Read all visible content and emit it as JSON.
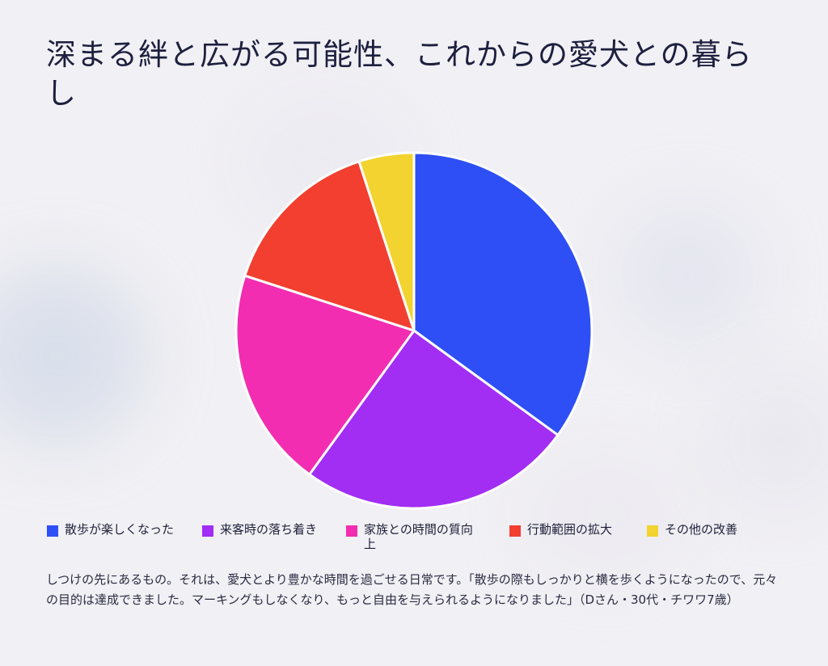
{
  "title": "深まる絆と広がる可能性、これからの愛犬との暮らし",
  "chart_data": {
    "type": "pie",
    "categories": [
      "散歩が楽しくなった",
      "来客時の落ち着き",
      "家族との時間の質向上",
      "行動範囲の拡大",
      "その他の改善"
    ],
    "values": [
      35,
      25,
      20,
      15,
      5
    ],
    "colors": [
      "#2d4ff5",
      "#a22df3",
      "#f22db1",
      "#f23f2f",
      "#f2d32f"
    ],
    "legend_position": "bottom"
  },
  "caption": "しつけの先にあるもの。それは、愛犬とより豊かな時間を過ごせる日常です。「散歩の際もしっかりと横を歩くようになったので、元々の目的は達成できました。マーキングもしなくなり、もっと自由を与えられるようになりました」（Dさん・30代・チワワ7歳）"
}
